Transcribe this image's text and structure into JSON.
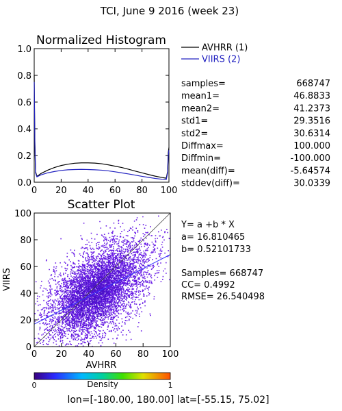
{
  "header": {
    "title": "TCI,  June 9 2016 (week 23)"
  },
  "chart_data": [
    {
      "type": "line",
      "title": "Normalized Histogram",
      "xlim": [
        0,
        100
      ],
      "ylim": [
        0,
        1.0
      ],
      "x_ticks": [
        "0",
        "20",
        "40",
        "60",
        "80",
        "100"
      ],
      "y_ticks": [
        "0.0",
        "0.2",
        "0.4",
        "0.6",
        "0.8",
        "1.0"
      ],
      "series": [
        {
          "name": "AVHRR (1)",
          "color": "#000000",
          "points": [
            [
              0,
              0.8
            ],
            [
              0.5,
              0.3
            ],
            [
              1,
              0.08
            ],
            [
              2,
              0.045
            ],
            [
              3,
              0.05
            ],
            [
              5,
              0.065
            ],
            [
              10,
              0.09
            ],
            [
              15,
              0.11
            ],
            [
              20,
              0.125
            ],
            [
              25,
              0.135
            ],
            [
              30,
              0.142
            ],
            [
              35,
              0.145
            ],
            [
              40,
              0.145
            ],
            [
              45,
              0.143
            ],
            [
              50,
              0.138
            ],
            [
              55,
              0.13
            ],
            [
              60,
              0.12
            ],
            [
              65,
              0.11
            ],
            [
              70,
              0.097
            ],
            [
              75,
              0.083
            ],
            [
              80,
              0.07
            ],
            [
              85,
              0.057
            ],
            [
              90,
              0.045
            ],
            [
              95,
              0.035
            ],
            [
              98,
              0.03
            ],
            [
              99,
              0.08
            ],
            [
              99.5,
              0.22
            ],
            [
              100,
              0.26
            ]
          ]
        },
        {
          "name": "VIIRS (2)",
          "color": "#2020c0",
          "points": [
            [
              0,
              0.75
            ],
            [
              0.5,
              0.28
            ],
            [
              1,
              0.07
            ],
            [
              2,
              0.04
            ],
            [
              3,
              0.045
            ],
            [
              5,
              0.055
            ],
            [
              10,
              0.07
            ],
            [
              15,
              0.08
            ],
            [
              20,
              0.088
            ],
            [
              25,
              0.093
            ],
            [
              30,
              0.095
            ],
            [
              35,
              0.096
            ],
            [
              40,
              0.095
            ],
            [
              45,
              0.093
            ],
            [
              50,
              0.09
            ],
            [
              55,
              0.085
            ],
            [
              60,
              0.078
            ],
            [
              65,
              0.07
            ],
            [
              70,
              0.062
            ],
            [
              75,
              0.053
            ],
            [
              80,
              0.044
            ],
            [
              85,
              0.036
            ],
            [
              90,
              0.028
            ],
            [
              95,
              0.022
            ],
            [
              98,
              0.02
            ],
            [
              99,
              0.07
            ],
            [
              99.5,
              0.2
            ],
            [
              100,
              0.24
            ]
          ]
        }
      ]
    },
    {
      "type": "scatter",
      "title": "Scatter Plot",
      "xlabel": "AVHRR",
      "ylabel": "VIIRS",
      "xlim": [
        0,
        100
      ],
      "ylim": [
        0,
        100
      ],
      "x_ticks": [
        "0",
        "20",
        "40",
        "60",
        "80",
        "100"
      ],
      "y_ticks": [
        "0",
        "20",
        "40",
        "60",
        "80",
        "100"
      ],
      "fit": {
        "a": 16.810465,
        "b": 0.52101733
      },
      "colorbar": {
        "label": "Density",
        "min_label": "0",
        "max_label": "1"
      }
    }
  ],
  "stats": [
    {
      "label": "samples=",
      "value": "668747"
    },
    {
      "label": "mean1=",
      "value": "46.8833"
    },
    {
      "label": "mean2=",
      "value": "41.2373"
    },
    {
      "label": "std1=",
      "value": "29.3516"
    },
    {
      "label": "std2=",
      "value": "30.6314"
    },
    {
      "label": "Diffmax=",
      "value": "100.000"
    },
    {
      "label": "Diffmin=",
      "value": "-100.000"
    },
    {
      "label": "mean(diff)=",
      "value": "-5.64574"
    },
    {
      "label": "stddev(diff)=",
      "value": "30.0339"
    }
  ],
  "regression": {
    "equation": "Y= a +b * X",
    "a_line": "a=  16.810465",
    "b_line": "b=  0.52101733",
    "samples_line": "Samples= 668747",
    "cc_line": "CC=   0.4992",
    "rmse_line": "RMSE= 26.540498"
  },
  "footer": {
    "range": "lon=[-180.00, 180.00] lat=[-55.15, 75.02]"
  }
}
